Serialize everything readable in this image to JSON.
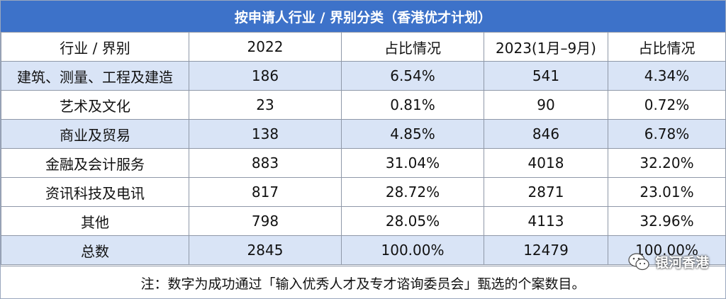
{
  "title": "按申请人行业 / 界别分类（香港优才计划）",
  "header": [
    "行业 / 界别",
    "2022",
    "占比情况",
    "2023(1月–9月)",
    "占比情况"
  ],
  "rows": [
    [
      "建筑、测量、工程及建造",
      "186",
      "6.54%",
      "541",
      "4.34%"
    ],
    [
      "艺术及文化",
      "23",
      "0.81%",
      "90",
      "0.72%"
    ],
    [
      "商业及贸易",
      "138",
      "4.85%",
      "846",
      "6.78%"
    ],
    [
      "金融及会计服务",
      "883",
      "31.04%",
      "4018",
      "32.20%"
    ],
    [
      "资讯科技及电讯",
      "817",
      "28.72%",
      "2871",
      "23.01%"
    ],
    [
      "其他",
      "798",
      "28.05%",
      "4113",
      "32.96%"
    ],
    [
      "总数",
      "2845",
      "100.00%",
      "12479",
      "100.00%"
    ]
  ],
  "note": "注：数字为成功通过「输入优秀人才及专才谘询委员会」甄选的个案数目。",
  "watermark": {
    "text": "银河香港",
    "icon": "wechat-icon"
  },
  "colors": {
    "title_bg": "#3d72c9",
    "row_shade": "#d9e4f6",
    "border": "#8f98a8"
  }
}
